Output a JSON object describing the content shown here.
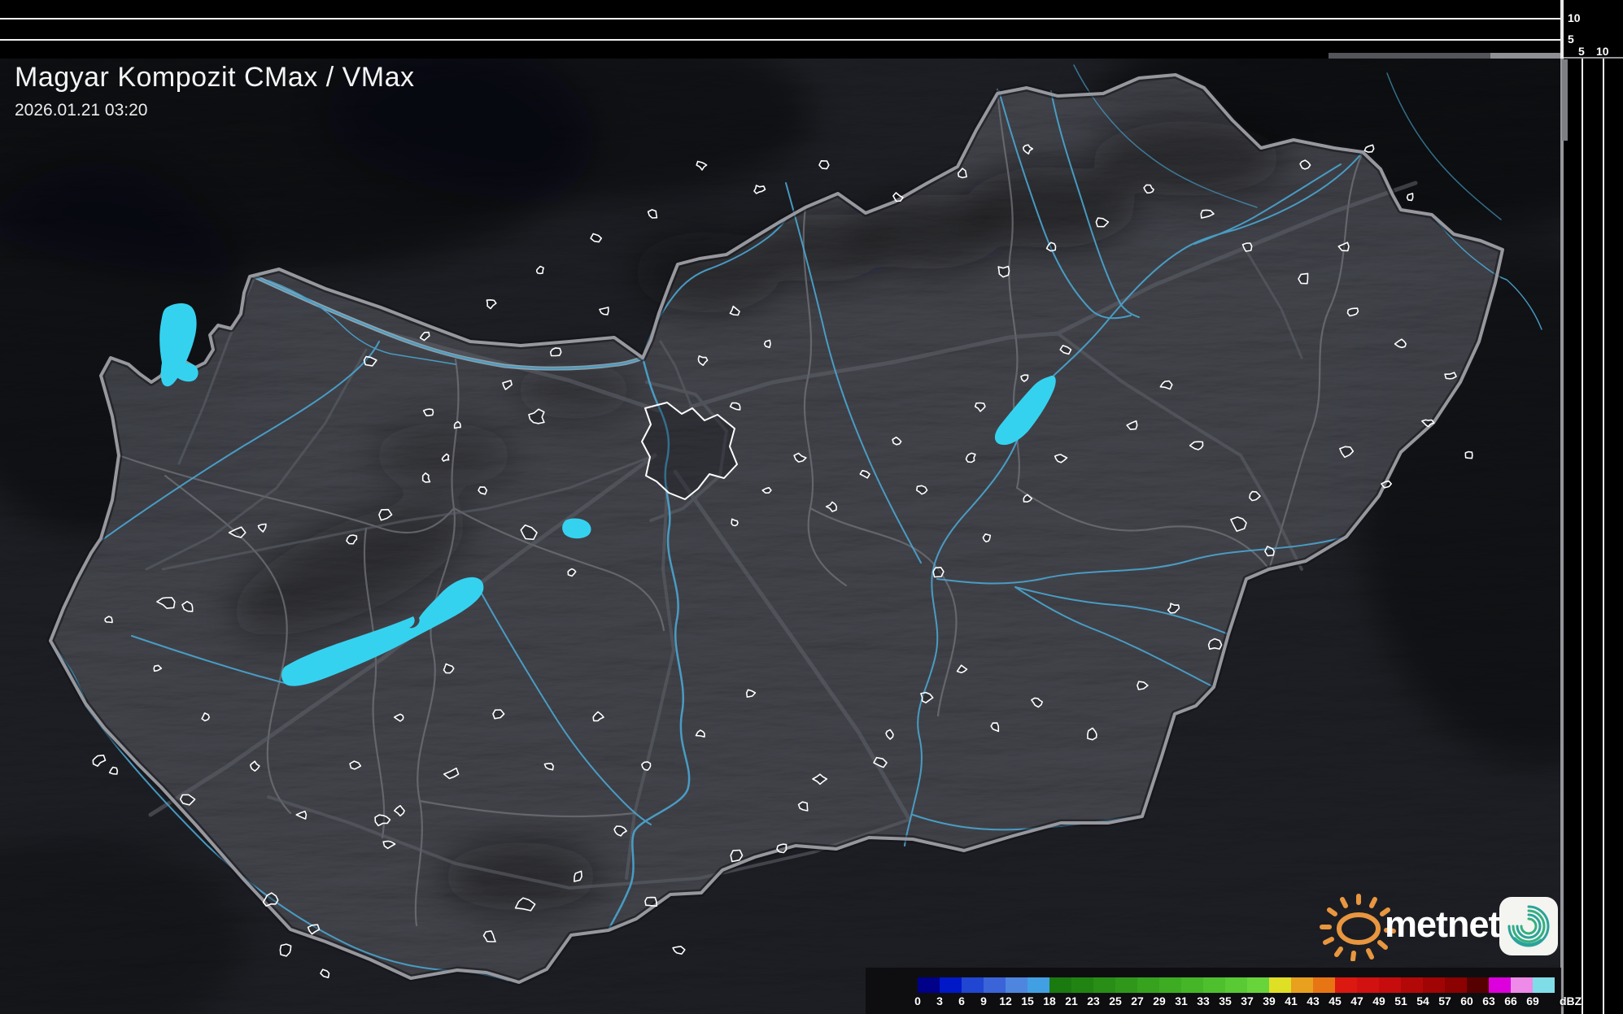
{
  "header": {
    "title": "Magyar Kompozit CMax / VMax",
    "datetime": "2026.01.21 03:20"
  },
  "profile_axes": {
    "top": {
      "ticks": [
        "10",
        "5"
      ]
    },
    "right": {
      "ticks": [
        "5",
        "10"
      ]
    }
  },
  "legend": {
    "unit": "dBZ",
    "values": [
      "0",
      "3",
      "6",
      "9",
      "12",
      "15",
      "18",
      "21",
      "23",
      "25",
      "27",
      "29",
      "31",
      "33",
      "35",
      "37",
      "39",
      "41",
      "43",
      "45",
      "47",
      "49",
      "51",
      "54",
      "57",
      "60",
      "63",
      "66",
      "69"
    ],
    "colors": [
      "#000089",
      "#0018c8",
      "#2146d2",
      "#3a64d8",
      "#4e86df",
      "#41a0e4",
      "#1a7a10",
      "#218412",
      "#288e16",
      "#2f981a",
      "#36a21e",
      "#3dac22",
      "#45b627",
      "#4fc02d",
      "#59ca33",
      "#68d43c",
      "#dfdf26",
      "#e8a01e",
      "#e87514",
      "#dc1910",
      "#d21210",
      "#c60c0c",
      "#b30808",
      "#a00404",
      "#8c0101",
      "#570000",
      "#dc00dc",
      "#ee8ae8",
      "#7fdde8"
    ]
  },
  "branding": {
    "logo_text": "metnet"
  },
  "map_colors": {
    "lake": "#35d2f0",
    "river": "#4aa4cf",
    "country_border": "#97989d",
    "county_border": "#6e7076",
    "road": "#585a63",
    "town_outline": "#ffffff"
  }
}
